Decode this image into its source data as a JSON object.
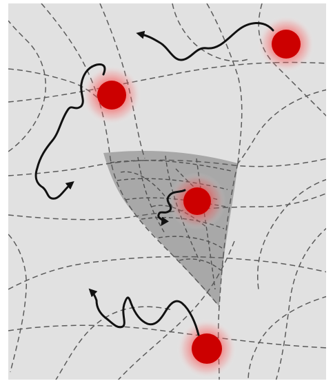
{
  "figure": {
    "background_color": "#e1e1e1",
    "frame_color": "#ffffff",
    "dense_region_color": "#a8a8a8",
    "fiber_color": "#5a5a5a",
    "trajectory_color": "#111111",
    "particle_color": "#cc0000",
    "particle_glow_color": "#ff2a2a",
    "particle_count": 4,
    "trajectory_count": 4
  }
}
